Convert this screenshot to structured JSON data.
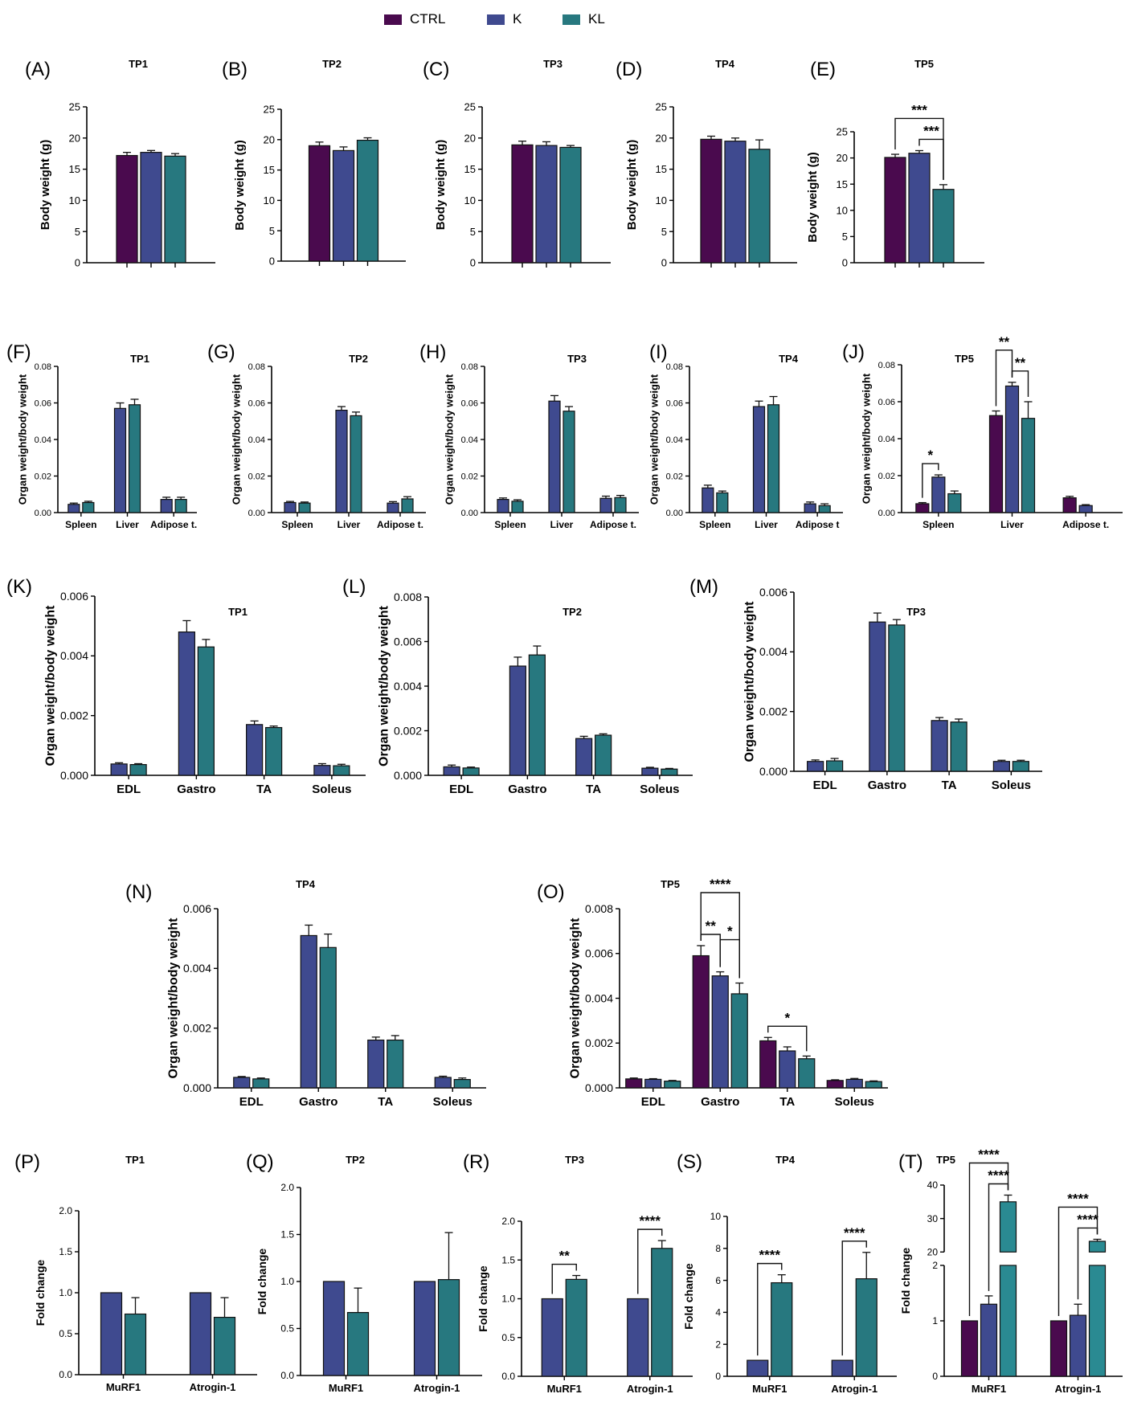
{
  "legend": [
    {
      "label": "CTRL",
      "color": "#4a0a4e"
    },
    {
      "label": "K",
      "color": "#3f4a8f"
    },
    {
      "label": "KL",
      "color": "#27787f"
    }
  ],
  "colors": {
    "CTRL": "#4a0a4e",
    "K": "#3f4a8f",
    "KL": "#27787f",
    "KL_teal": "#2a8a92"
  },
  "chart_data": [
    {
      "panel": "(A)",
      "title": "TP1",
      "type": "bar",
      "ylabel": "Body weight (g)",
      "ylim": [
        0,
        25
      ],
      "yticks": [
        0,
        5,
        10,
        15,
        20,
        25
      ],
      "categories": [
        ""
      ],
      "series": [
        {
          "name": "CTRL",
          "values": [
            17.2
          ],
          "err": [
            0.5
          ]
        },
        {
          "name": "K",
          "values": [
            17.7
          ],
          "err": [
            0.3
          ]
        },
        {
          "name": "KL",
          "values": [
            17.1
          ],
          "err": [
            0.4
          ]
        }
      ],
      "sig": []
    },
    {
      "panel": "(B)",
      "title": "TP2",
      "type": "bar",
      "ylabel": "Body weight (g)",
      "ylim": [
        0,
        25
      ],
      "yticks": [
        0,
        5,
        10,
        15,
        20,
        25
      ],
      "categories": [
        ""
      ],
      "series": [
        {
          "name": "CTRL",
          "values": [
            19.0
          ],
          "err": [
            0.6
          ]
        },
        {
          "name": "K",
          "values": [
            18.2
          ],
          "err": [
            0.6
          ]
        },
        {
          "name": "KL",
          "values": [
            19.9
          ],
          "err": [
            0.4
          ]
        }
      ],
      "sig": []
    },
    {
      "panel": "(C)",
      "title": "TP3",
      "type": "bar",
      "ylabel": "Body weight (g)",
      "ylim": [
        0,
        25
      ],
      "yticks": [
        0,
        5,
        10,
        15,
        20,
        25
      ],
      "categories": [
        ""
      ],
      "series": [
        {
          "name": "CTRL",
          "values": [
            18.9
          ],
          "err": [
            0.6
          ]
        },
        {
          "name": "K",
          "values": [
            18.8
          ],
          "err": [
            0.6
          ]
        },
        {
          "name": "KL",
          "values": [
            18.5
          ],
          "err": [
            0.3
          ]
        }
      ],
      "sig": []
    },
    {
      "panel": "(D)",
      "title": "TP4",
      "type": "bar",
      "ylabel": "Body weight (g)",
      "ylim": [
        0,
        25
      ],
      "yticks": [
        0,
        5,
        10,
        15,
        20,
        25
      ],
      "categories": [
        ""
      ],
      "series": [
        {
          "name": "CTRL",
          "values": [
            19.8
          ],
          "err": [
            0.5
          ]
        },
        {
          "name": "K",
          "values": [
            19.5
          ],
          "err": [
            0.5
          ]
        },
        {
          "name": "KL",
          "values": [
            18.2
          ],
          "err": [
            1.5
          ]
        }
      ],
      "sig": []
    },
    {
      "panel": "(E)",
      "title": "TP5",
      "type": "bar",
      "ylabel": "Body weight (g)",
      "ylim": [
        0,
        25
      ],
      "yticks": [
        0,
        5,
        10,
        15,
        20,
        25
      ],
      "categories": [
        ""
      ],
      "series": [
        {
          "name": "CTRL",
          "values": [
            20.1
          ],
          "err": [
            0.6
          ]
        },
        {
          "name": "K",
          "values": [
            20.9
          ],
          "err": [
            0.5
          ]
        },
        {
          "name": "KL",
          "values": [
            14.0
          ],
          "err": [
            0.9
          ]
        }
      ],
      "sig": [
        {
          "cat": 0,
          "from": 0,
          "to": 2,
          "label": "***",
          "level": 1
        },
        {
          "cat": 0,
          "from": 1,
          "to": 2,
          "label": "***",
          "level": 0
        }
      ]
    },
    {
      "panel": "(F)",
      "title": "TP1",
      "type": "bar",
      "ylabel": "Organ weight/body weight",
      "ylim": [
        0,
        0.08
      ],
      "yticks": [
        0,
        0.02,
        0.04,
        0.06,
        0.08
      ],
      "categories": [
        "Spleen",
        "Liver",
        "Adipose t."
      ],
      "series": [
        {
          "name": "K",
          "values": [
            0.0045,
            0.057,
            0.0072
          ],
          "err": [
            0.0007,
            0.003,
            0.0012
          ]
        },
        {
          "name": "KL",
          "values": [
            0.0055,
            0.059,
            0.0072
          ],
          "err": [
            0.0007,
            0.003,
            0.0012
          ]
        }
      ],
      "sig": []
    },
    {
      "panel": "(G)",
      "title": "TP2",
      "type": "bar",
      "ylabel": "Organ weight/body weight",
      "ylim": [
        0,
        0.08
      ],
      "yticks": [
        0,
        0.02,
        0.04,
        0.06,
        0.08
      ],
      "categories": [
        "Spleen",
        "Liver",
        "Adipose t."
      ],
      "series": [
        {
          "name": "K",
          "values": [
            0.0055,
            0.056,
            0.0052
          ],
          "err": [
            0.0006,
            0.002,
            0.0008
          ]
        },
        {
          "name": "KL",
          "values": [
            0.0052,
            0.053,
            0.0075
          ],
          "err": [
            0.0006,
            0.002,
            0.0012
          ]
        }
      ],
      "sig": []
    },
    {
      "panel": "(H)",
      "title": "TP3",
      "type": "bar",
      "ylabel": "Organ weight/body weight",
      "ylim": [
        0,
        0.08
      ],
      "yticks": [
        0,
        0.02,
        0.04,
        0.06,
        0.08
      ],
      "categories": [
        "Spleen",
        "Liver",
        "Adipose t."
      ],
      "series": [
        {
          "name": "K",
          "values": [
            0.0072,
            0.061,
            0.0078
          ],
          "err": [
            0.0008,
            0.003,
            0.0012
          ]
        },
        {
          "name": "KL",
          "values": [
            0.0062,
            0.0555,
            0.0082
          ],
          "err": [
            0.0008,
            0.0025,
            0.0012
          ]
        }
      ],
      "sig": []
    },
    {
      "panel": "(I)",
      "title": "TP4",
      "type": "bar",
      "ylabel": "Organ weight/body weight",
      "ylim": [
        0,
        0.08
      ],
      "yticks": [
        0,
        0.02,
        0.04,
        0.06,
        0.08
      ],
      "categories": [
        "Spleen",
        "Liver",
        "Adipose t"
      ],
      "series": [
        {
          "name": "K",
          "values": [
            0.0135,
            0.058,
            0.0048
          ],
          "err": [
            0.0015,
            0.003,
            0.001
          ]
        },
        {
          "name": "KL",
          "values": [
            0.0108,
            0.059,
            0.0038
          ],
          "err": [
            0.001,
            0.0045,
            0.001
          ]
        }
      ],
      "sig": []
    },
    {
      "panel": "(J)",
      "title": "TP5",
      "type": "bar",
      "ylabel": "Organ weight/body weight",
      "ylim": [
        0,
        0.08
      ],
      "yticks": [
        0,
        0.02,
        0.04,
        0.06,
        0.08
      ],
      "categories": [
        "Spleen",
        "Liver",
        "Adipose t."
      ],
      "series": [
        {
          "name": "CTRL",
          "values": [
            0.0048,
            0.0525,
            0.008
          ],
          "err": [
            0.0006,
            0.0025,
            0.0008
          ]
        },
        {
          "name": "K",
          "values": [
            0.0192,
            0.0685,
            0.0038
          ],
          "err": [
            0.0012,
            0.002,
            0.0005
          ]
        },
        {
          "name": "KL",
          "values": [
            0.0102,
            0.051,
            0.0
          ],
          "err": [
            0.0015,
            0.009,
            0.0
          ]
        }
      ],
      "sig": [
        {
          "cat": 0,
          "from": 0,
          "to": 1,
          "label": "*",
          "level": 0
        },
        {
          "cat": 1,
          "from": 0,
          "to": 1,
          "label": "**",
          "level": 1
        },
        {
          "cat": 1,
          "from": 1,
          "to": 2,
          "label": "**",
          "level": 0
        }
      ]
    },
    {
      "panel": "(K)",
      "title": "TP1",
      "type": "bar",
      "ylabel": "Organ weight/body weight",
      "ylim": [
        0,
        0.006
      ],
      "yticks": [
        0,
        0.002,
        0.004,
        0.006
      ],
      "categories": [
        "EDL",
        "Gastro",
        "TA",
        "Soleus"
      ],
      "series": [
        {
          "name": "K",
          "values": [
            0.00038,
            0.0048,
            0.0017,
            0.00033
          ],
          "err": [
            4e-05,
            0.00038,
            0.00012,
            6e-05
          ]
        },
        {
          "name": "KL",
          "values": [
            0.00036,
            0.0043,
            0.0016,
            0.00032
          ],
          "err": [
            3e-05,
            0.00025,
            5e-05,
            5e-05
          ]
        }
      ],
      "sig": []
    },
    {
      "panel": "(L)",
      "title": "TP2",
      "type": "bar",
      "ylabel": "Organ weight/body weight",
      "ylim": [
        0,
        0.008
      ],
      "yticks": [
        0,
        0.002,
        0.004,
        0.006,
        0.008
      ],
      "categories": [
        "EDL",
        "Gastro",
        "TA",
        "Soleus"
      ],
      "series": [
        {
          "name": "K",
          "values": [
            0.00038,
            0.0049,
            0.00165,
            0.00032
          ],
          "err": [
            8e-05,
            0.0004,
            0.0001,
            4e-05
          ]
        },
        {
          "name": "KL",
          "values": [
            0.00033,
            0.0054,
            0.0018,
            0.00028
          ],
          "err": [
            4e-05,
            0.0004,
            6e-05,
            3e-05
          ]
        }
      ],
      "sig": []
    },
    {
      "panel": "(M)",
      "title": "TP3",
      "type": "bar",
      "ylabel": "Organ weight/body weight",
      "ylim": [
        0,
        0.006
      ],
      "yticks": [
        0,
        0.002,
        0.004,
        0.006
      ],
      "categories": [
        "EDL",
        "Gastro",
        "TA",
        "Soleus"
      ],
      "series": [
        {
          "name": "K",
          "values": [
            0.00033,
            0.005,
            0.0017,
            0.00033
          ],
          "err": [
            5e-05,
            0.0003,
            0.0001,
            4e-05
          ]
        },
        {
          "name": "KL",
          "values": [
            0.00035,
            0.0049,
            0.00165,
            0.00033
          ],
          "err": [
            8e-05,
            0.00018,
            0.0001,
            4e-05
          ]
        }
      ],
      "sig": []
    },
    {
      "panel": "(N)",
      "title": "TP4",
      "type": "bar",
      "ylabel": "Organ weight/body weight",
      "ylim": [
        0,
        0.006
      ],
      "yticks": [
        0,
        0.002,
        0.004,
        0.006
      ],
      "categories": [
        "EDL",
        "Gastro",
        "TA",
        "Soleus"
      ],
      "series": [
        {
          "name": "K",
          "values": [
            0.00035,
            0.0051,
            0.0016,
            0.00035
          ],
          "err": [
            3e-05,
            0.00035,
            0.0001,
            4e-05
          ]
        },
        {
          "name": "KL",
          "values": [
            0.0003,
            0.0047,
            0.0016,
            0.00028
          ],
          "err": [
            3e-05,
            0.00045,
            0.00015,
            5e-05
          ]
        }
      ],
      "sig": []
    },
    {
      "panel": "(O)",
      "title": "TP5",
      "type": "bar",
      "ylabel": "Organ weight/body weight",
      "ylim": [
        0,
        0.008
      ],
      "yticks": [
        0,
        0.002,
        0.004,
        0.006,
        0.008
      ],
      "categories": [
        "EDL",
        "Gastro",
        "TA",
        "Soleus"
      ],
      "series": [
        {
          "name": "CTRL",
          "values": [
            0.0004,
            0.0059,
            0.0021,
            0.00033
          ],
          "err": [
            4e-05,
            0.00045,
            0.00015,
            3e-05
          ]
        },
        {
          "name": "K",
          "values": [
            0.00038,
            0.005,
            0.00165,
            0.00038
          ],
          "err": [
            3e-05,
            0.00018,
            0.00018,
            4e-05
          ]
        },
        {
          "name": "KL",
          "values": [
            0.0003,
            0.0042,
            0.0013,
            0.00028
          ],
          "err": [
            3e-05,
            0.00048,
            0.00012,
            3e-05
          ]
        }
      ],
      "sig": [
        {
          "cat": 1,
          "from": 0,
          "to": 2,
          "label": "****",
          "level": 2
        },
        {
          "cat": 1,
          "from": 1,
          "to": 2,
          "label": "*",
          "level": 1
        },
        {
          "cat": 1,
          "from": 0,
          "to": 1,
          "label": "**",
          "level": 0
        },
        {
          "cat": 2,
          "from": 0,
          "to": 2,
          "label": "*",
          "level": 0
        }
      ]
    },
    {
      "panel": "(P)",
      "title": "TP1",
      "type": "bar",
      "ylabel": "Fold change",
      "ylim": [
        0,
        2.0
      ],
      "yticks": [
        0.0,
        0.5,
        1.0,
        1.5,
        2.0
      ],
      "categories": [
        "MuRF1",
        "Atrogin-1"
      ],
      "series": [
        {
          "name": "K",
          "values": [
            1.0,
            1.0
          ],
          "err": [
            0,
            0
          ]
        },
        {
          "name": "KL",
          "values": [
            0.74,
            0.7
          ],
          "err": [
            0.2,
            0.24
          ]
        }
      ],
      "sig": []
    },
    {
      "panel": "(Q)",
      "title": "TP2",
      "type": "bar",
      "ylabel": "Fold change",
      "ylim": [
        0,
        2.0
      ],
      "yticks": [
        0.0,
        0.5,
        1.0,
        1.5,
        2.0
      ],
      "categories": [
        "MuRF1",
        "Atrogin-1"
      ],
      "series": [
        {
          "name": "K",
          "values": [
            1.0,
            1.0
          ],
          "err": [
            0,
            0
          ]
        },
        {
          "name": "KL",
          "values": [
            0.67,
            1.02
          ],
          "err": [
            0.26,
            0.5
          ]
        }
      ],
      "sig": []
    },
    {
      "panel": "(R)",
      "title": "TP3",
      "type": "bar",
      "ylabel": "Fold change",
      "ylim": [
        0,
        2.0
      ],
      "yticks": [
        0.0,
        0.5,
        1.0,
        1.5,
        2.0
      ],
      "categories": [
        "MuRF1",
        "Atrogin-1"
      ],
      "series": [
        {
          "name": "K",
          "values": [
            1.0,
            1.0
          ],
          "err": [
            0,
            0
          ]
        },
        {
          "name": "KL",
          "values": [
            1.25,
            1.65
          ],
          "err": [
            0.05,
            0.1
          ]
        }
      ],
      "sig": [
        {
          "cat": 0,
          "from": 0,
          "to": 1,
          "label": "**",
          "level": 0
        },
        {
          "cat": 1,
          "from": 0,
          "to": 1,
          "label": "****",
          "level": 0
        }
      ]
    },
    {
      "panel": "(S)",
      "title": "TP4",
      "type": "bar",
      "ylabel": "Fold change",
      "ylim": [
        0,
        10
      ],
      "yticks": [
        0,
        2,
        4,
        6,
        8,
        10
      ],
      "categories": [
        "MuRF1",
        "Atrogin-1"
      ],
      "series": [
        {
          "name": "K",
          "values": [
            1.0,
            1.0
          ],
          "err": [
            0,
            0
          ]
        },
        {
          "name": "KL",
          "values": [
            5.85,
            6.1
          ],
          "err": [
            0.5,
            1.65
          ]
        }
      ],
      "sig": [
        {
          "cat": 0,
          "from": 0,
          "to": 1,
          "label": "****",
          "level": 0
        },
        {
          "cat": 1,
          "from": 0,
          "to": 1,
          "label": "****",
          "level": 0
        }
      ]
    },
    {
      "panel": "(T)",
      "title": "TP5",
      "type": "bar",
      "ylabel": "Fold change",
      "axis_break": true,
      "ylim_lower": [
        0,
        2
      ],
      "ylim_upper": [
        20,
        40
      ],
      "yticks_lower": [
        0,
        1,
        2
      ],
      "yticks_upper": [
        20,
        30,
        40
      ],
      "categories": [
        "MuRF1",
        "Atrogin-1"
      ],
      "series": [
        {
          "name": "CTRL",
          "values": [
            1.0,
            1.0
          ],
          "err": [
            0,
            0
          ]
        },
        {
          "name": "K",
          "values": [
            1.3,
            1.1
          ],
          "err": [
            0.15,
            0.2
          ]
        },
        {
          "name": "KL",
          "values": [
            35.0,
            23.2
          ],
          "err": [
            2.0,
            0.6
          ]
        }
      ],
      "sig": [
        {
          "cat": 0,
          "from": 0,
          "to": 2,
          "label": "****",
          "level": 1
        },
        {
          "cat": 0,
          "from": 1,
          "to": 2,
          "label": "****",
          "level": 0
        },
        {
          "cat": 1,
          "from": 0,
          "to": 2,
          "label": "****",
          "level": 1
        },
        {
          "cat": 1,
          "from": 1,
          "to": 2,
          "label": "****",
          "level": 0
        }
      ]
    }
  ]
}
